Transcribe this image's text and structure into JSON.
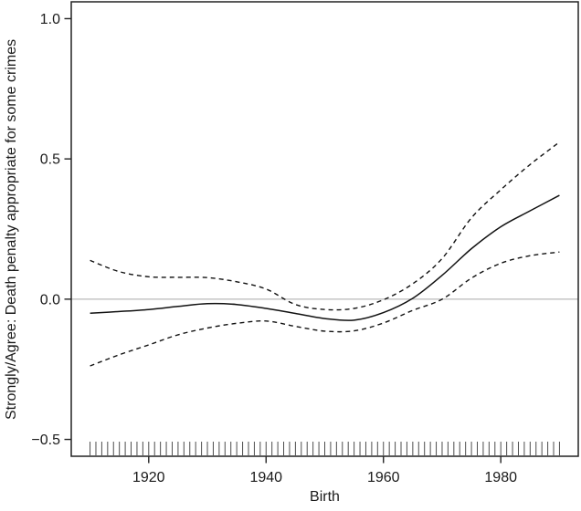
{
  "chart_data": {
    "type": "line",
    "title": "",
    "xlabel": "Birth",
    "ylabel": "Strongly/Agree: Death penalty appropriate for some crimes",
    "x": [
      1910,
      1915,
      1920,
      1925,
      1930,
      1935,
      1940,
      1945,
      1950,
      1955,
      1960,
      1965,
      1970,
      1975,
      1980,
      1985,
      1990
    ],
    "series": [
      {
        "name": "gam-fit",
        "line_style": "solid",
        "values": [
          -0.05,
          -0.044,
          -0.037,
          -0.026,
          -0.016,
          -0.019,
          -0.033,
          -0.051,
          -0.069,
          -0.075,
          -0.048,
          0.003,
          0.085,
          0.18,
          0.258,
          0.315,
          0.37
        ]
      },
      {
        "name": "upper-confidence-band",
        "line_style": "dashed",
        "values": [
          0.138,
          0.098,
          0.08,
          0.078,
          0.077,
          0.062,
          0.036,
          -0.019,
          -0.037,
          -0.033,
          -0.002,
          0.055,
          0.145,
          0.29,
          0.39,
          0.48,
          0.56
        ]
      },
      {
        "name": "lower-confidence-band",
        "line_style": "dashed",
        "values": [
          -0.238,
          -0.198,
          -0.163,
          -0.127,
          -0.103,
          -0.086,
          -0.078,
          -0.097,
          -0.114,
          -0.113,
          -0.085,
          -0.04,
          0.0,
          0.075,
          0.128,
          0.155,
          0.168
        ]
      }
    ],
    "x_ticks": [
      {
        "value": 1920,
        "label": "1920"
      },
      {
        "value": 1940,
        "label": "1940"
      },
      {
        "value": 1960,
        "label": "1960"
      },
      {
        "value": 1980,
        "label": "1980"
      }
    ],
    "y_ticks": [
      {
        "value": 1.0,
        "label": "1.0"
      },
      {
        "value": 0.5,
        "label": "0.5"
      },
      {
        "value": 0.0,
        "label": "0.0"
      },
      {
        "value": -0.5,
        "label": "−0.5"
      }
    ],
    "xlim": [
      1906.8,
      1993.2
    ],
    "ylim": [
      -0.56,
      1.06
    ],
    "reference_line_y": 0.0,
    "rug_years": {
      "start": 1910,
      "end": 1990,
      "step": 1
    },
    "grid": false,
    "legend": false,
    "colors": {
      "curve": "#111111",
      "ci": "#111111",
      "zero_line": "#a9a9a9",
      "box": "#222222",
      "rug": "#4d4d4d",
      "text": "#1a1a1a"
    }
  }
}
